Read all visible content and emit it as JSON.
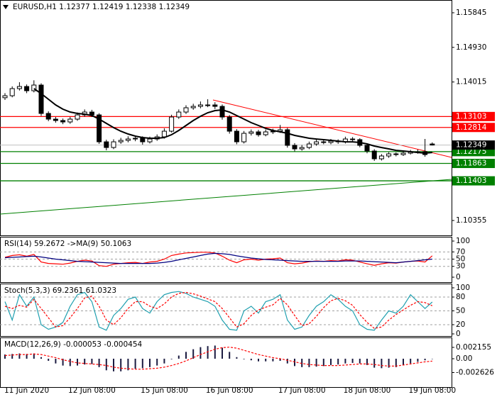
{
  "chart_data": [
    {
      "type": "candlestick",
      "title": "EURUSD,H1 1.12377 1.12419 1.12338 1.12349",
      "x": [
        null,
        null,
        null,
        "11 Jun 2020",
        null,
        null,
        null,
        null,
        null,
        null,
        null,
        null,
        "12 Jun 08:00",
        null,
        null,
        null,
        null,
        null,
        null,
        null,
        null,
        null,
        "15 Jun 08:00",
        null,
        null,
        null,
        null,
        null,
        null,
        null,
        null,
        "16 Jun 08:00",
        null,
        null,
        null,
        null,
        null,
        null,
        null,
        null,
        null,
        "17 Jun 08:00",
        null,
        null,
        null,
        null,
        null,
        null,
        null,
        null,
        "18 Jun 08:00",
        null,
        null,
        null,
        null,
        null,
        null,
        null,
        null,
        "19 Jun 08:00"
      ],
      "open": [
        1.136,
        1.13652,
        1.1384,
        1.13896,
        1.13784,
        1.13934,
        1.13184,
        1.13034,
        1.12997,
        1.12959,
        1.13034,
        1.13146,
        1.13221,
        1.13146,
        1.12434,
        1.12284,
        1.12434,
        1.12472,
        1.12509,
        1.12528,
        1.12434,
        1.12509,
        1.12566,
        1.12715,
        1.1309,
        1.13221,
        1.13334,
        1.13371,
        1.13409,
        1.13409,
        1.13371,
        1.1309,
        1.12715,
        1.12434,
        1.12659,
        1.12697,
        1.12622,
        1.12697,
        1.12715,
        1.12753,
        1.12341,
        1.12247,
        1.12284,
        1.12378,
        1.12434,
        1.12416,
        1.12453,
        1.12434,
        1.12509,
        1.12491,
        1.12341,
        1.12191,
        1.11985,
        1.1206,
        1.12116,
        1.12097,
        1.12135,
        1.12172,
        1.12172,
        1.12377
      ],
      "high": [
        1.1372,
        1.139,
        1.1401,
        1.1395,
        1.1406,
        1.1398,
        1.1324,
        1.1309,
        1.1305,
        1.1309,
        1.1321,
        1.1329,
        1.1328,
        1.1319,
        1.1249,
        1.125,
        1.1254,
        1.1258,
        1.126,
        1.1258,
        1.1257,
        1.1263,
        1.1279,
        1.1315,
        1.1329,
        1.134,
        1.1344,
        1.135,
        1.1356,
        1.1348,
        1.1342,
        1.1314,
        1.1277,
        1.1272,
        1.1276,
        1.1275,
        1.1276,
        1.1278,
        1.1288,
        1.128,
        1.124,
        1.1235,
        1.1244,
        1.1249,
        1.1248,
        1.1251,
        1.125,
        1.1257,
        1.1256,
        1.1253,
        1.1239,
        1.1224,
        1.1211,
        1.1216,
        1.1215,
        1.1218,
        1.1222,
        1.1223,
        1.1251,
        1.12419
      ],
      "low": [
        1.1354,
        1.1361,
        1.1379,
        1.1372,
        1.1374,
        1.1312,
        1.1298,
        1.1294,
        1.129,
        1.1291,
        1.1299,
        1.131,
        1.1309,
        1.1238,
        1.1221,
        1.1224,
        1.1238,
        1.1242,
        1.1245,
        1.1236,
        1.1239,
        1.1246,
        1.1252,
        1.1268,
        1.1304,
        1.1317,
        1.1328,
        1.1332,
        1.1335,
        1.133,
        1.1302,
        1.1265,
        1.1237,
        1.1239,
        1.126,
        1.1257,
        1.1258,
        1.1264,
        1.1267,
        1.1228,
        1.1218,
        1.122,
        1.1224,
        1.1233,
        1.1237,
        1.1237,
        1.1238,
        1.1239,
        1.1243,
        1.1229,
        1.1213,
        1.1193,
        1.1194,
        1.1201,
        1.1205,
        1.1206,
        1.121,
        1.1212,
        1.1204,
        1.12338
      ],
      "close": [
        1.13652,
        1.1384,
        1.13896,
        1.13784,
        1.13934,
        1.13184,
        1.13034,
        1.12997,
        1.12959,
        1.13034,
        1.13146,
        1.13221,
        1.13146,
        1.12434,
        1.12284,
        1.12434,
        1.12472,
        1.12509,
        1.12528,
        1.12434,
        1.12509,
        1.12566,
        1.12715,
        1.1309,
        1.13221,
        1.13334,
        1.13371,
        1.13409,
        1.13409,
        1.13371,
        1.1309,
        1.12715,
        1.12434,
        1.12659,
        1.12697,
        1.12622,
        1.12697,
        1.12715,
        1.12753,
        1.12341,
        1.12247,
        1.12284,
        1.12378,
        1.12434,
        1.12416,
        1.12453,
        1.12434,
        1.12509,
        1.12491,
        1.12341,
        1.12191,
        1.11985,
        1.1206,
        1.12116,
        1.12097,
        1.12135,
        1.12172,
        1.12172,
        1.12097,
        1.12349
      ],
      "candle_color": "#000000",
      "ma": {
        "color": "#000000",
        "values": [
          null,
          null,
          null,
          null,
          1.1384,
          1.13709,
          1.13559,
          1.13409,
          1.13296,
          1.13221,
          1.13184,
          1.13165,
          1.13128,
          1.13034,
          1.12922,
          1.12809,
          1.12715,
          1.12641,
          1.12584,
          1.12547,
          1.12528,
          1.12528,
          1.12547,
          1.12622,
          1.12734,
          1.12865,
          1.12997,
          1.13109,
          1.13203,
          1.13259,
          1.13278,
          1.13221,
          1.13128,
          1.13034,
          1.1294,
          1.12865,
          1.1279,
          1.12734,
          1.12697,
          1.12659,
          1.12603,
          1.12566,
          1.12528,
          1.12509,
          1.12491,
          1.12472,
          1.12453,
          1.12434,
          1.12434,
          1.12416,
          1.12378,
          1.12322,
          1.12284,
          1.12247,
          1.12209,
          1.12191,
          1.12172,
          1.12153,
          1.12135,
          1.12153
        ]
      },
      "ylim": [
        1.09962,
        1.16182
      ],
      "yticks": [
        1.15845,
        {
          "value": 1.1493,
          "label": "1.14930"
        },
        1.14015,
        1.10355
      ],
      "levels": [
        {
          "value": 1.13103,
          "color": "#ff0000"
        },
        {
          "value": 1.12814,
          "color": "#ff0000"
        },
        {
          "value": 1.12175,
          "color": "#008000"
        },
        {
          "value": 1.11863,
          "color": "#008000"
        },
        {
          "value": 1.11403,
          "color": "#008000"
        }
      ],
      "bid": 1.12349
    },
    {
      "type": "line",
      "title": "RSI(14) 59.2672 ->MA(9) 50.1063",
      "series": [
        {
          "color": "#ff0000",
          "style": "solid",
          "values": [
            55,
            60,
            62,
            58,
            63,
            42,
            38,
            37,
            36,
            39,
            44,
            47,
            45,
            32,
            30,
            36,
            38,
            40,
            41,
            38,
            42,
            44,
            50,
            60,
            64,
            67,
            68,
            69,
            69,
            67,
            58,
            47,
            40,
            48,
            50,
            47,
            50,
            51,
            53,
            40,
            37,
            39,
            43,
            45,
            44,
            46,
            45,
            48,
            47,
            42,
            37,
            33,
            37,
            40,
            39,
            42,
            44,
            45,
            42,
            59.2672
          ]
        },
        {
          "color": "#000080",
          "style": "solid",
          "values": [
            54,
            55,
            56,
            57,
            58,
            56,
            53,
            50,
            48,
            46,
            44,
            43,
            42,
            41,
            40,
            39,
            38,
            38,
            38,
            38,
            38,
            39,
            41,
            44,
            48,
            52,
            56,
            60,
            64,
            66,
            65,
            63,
            59,
            56,
            53,
            51,
            49,
            48,
            47,
            46,
            45,
            44,
            44,
            44,
            44,
            44,
            44,
            45,
            45,
            45,
            44,
            43,
            42,
            41,
            40,
            42,
            44,
            46,
            48,
            50.1063
          ]
        }
      ],
      "ylim": [
        -13.7,
        111.8
      ],
      "yticks": [
        100,
        70,
        50,
        30,
        0
      ],
      "levels": [
        70,
        50,
        30
      ]
    },
    {
      "type": "line",
      "title": "Stoch(5,3,3) 69.2361 61.0323",
      "series": [
        {
          "color": "#20a0b0",
          "style": "solid",
          "values": [
            70,
            30,
            85,
            60,
            80,
            20,
            10,
            15,
            25,
            60,
            85,
            90,
            70,
            15,
            8,
            40,
            55,
            75,
            80,
            55,
            45,
            70,
            85,
            90,
            92,
            88,
            80,
            75,
            70,
            60,
            30,
            10,
            8,
            50,
            60,
            45,
            70,
            75,
            85,
            30,
            10,
            15,
            40,
            60,
            70,
            85,
            75,
            60,
            50,
            20,
            10,
            8,
            30,
            50,
            45,
            60,
            85,
            70,
            55,
            69.2361
          ]
        },
        {
          "color": "#ff0000",
          "style": "dashed",
          "values": [
            60,
            55,
            62,
            58,
            75,
            55,
            35,
            15,
            18,
            35,
            55,
            78,
            82,
            60,
            30,
            20,
            35,
            55,
            70,
            70,
            60,
            55,
            65,
            80,
            88,
            90,
            87,
            82,
            76,
            70,
            55,
            35,
            15,
            22,
            40,
            52,
            58,
            63,
            77,
            63,
            40,
            18,
            22,
            38,
            57,
            72,
            77,
            72,
            62,
            42,
            25,
            12,
            15,
            30,
            42,
            52,
            62,
            70,
            68,
            61.0323
          ]
        }
      ],
      "ylim": [
        -4.6,
        109.2
      ],
      "yticks": [
        100,
        80,
        50,
        20,
        0
      ],
      "levels": [
        80,
        50,
        20
      ]
    },
    {
      "type": "bar",
      "title": "MACD(12,26,9) -0.000053 -0.000454",
      "series": [
        {
          "color": "#1a1a40",
          "style": "bars",
          "values": [
            0.0008,
            0.0009,
            0.001,
            0.0009,
            0.001,
            0.0003,
            -0.0004,
            -0.0009,
            -0.0013,
            -0.0014,
            -0.0013,
            -0.0011,
            -0.001,
            -0.0016,
            -0.0022,
            -0.0024,
            -0.0024,
            -0.0022,
            -0.0019,
            -0.0018,
            -0.0016,
            -0.0013,
            -0.0009,
            -0.0001,
            0.0006,
            0.0013,
            0.0018,
            0.0022,
            0.0024,
            0.0025,
            0.0021,
            0.0013,
            0.0003,
            -0.0001,
            -0.0003,
            -0.0005,
            -0.0005,
            -0.0005,
            -0.0004,
            -0.0009,
            -0.0014,
            -0.0016,
            -0.0016,
            -0.0015,
            -0.0014,
            -0.0012,
            -0.0011,
            -0.0009,
            -0.0008,
            -0.0009,
            -0.0012,
            -0.0017,
            -0.0018,
            -0.0017,
            -0.0016,
            -0.0012,
            -0.0009,
            -0.0006,
            -0.0003,
            -5.3e-05
          ]
        },
        {
          "color": "#ff0000",
          "style": "dashed",
          "values": [
            0.0006,
            0.0007,
            0.0008,
            0.0008,
            0.0009,
            0.0008,
            0.0005,
            0.0002,
            -0.0002,
            -0.0005,
            -0.0008,
            -0.0009,
            -0.001,
            -0.0011,
            -0.0013,
            -0.0016,
            -0.0018,
            -0.0019,
            -0.002,
            -0.002,
            -0.0019,
            -0.0018,
            -0.0016,
            -0.0013,
            -0.0009,
            -0.0004,
            0.0002,
            0.0008,
            0.0013,
            0.0018,
            0.0021,
            0.0022,
            0.002,
            0.0016,
            0.0012,
            0.0008,
            0.0005,
            0.0002,
            0,
            -0.0003,
            -0.0006,
            -0.0009,
            -0.0011,
            -0.0012,
            -0.0013,
            -0.0013,
            -0.0013,
            -0.0012,
            -0.0011,
            -0.001,
            -0.001,
            -0.0011,
            -0.0013,
            -0.0014,
            -0.0014,
            -0.0012,
            -0.001,
            -0.0008,
            -0.0006,
            -0.000454
          ]
        }
      ],
      "ylim": [
        -0.00539,
        0.00404
      ],
      "yticks": [
        0.002155,
        {
          "value": 0,
          "label": "0.00"
        },
        -0.002626
      ]
    }
  ]
}
